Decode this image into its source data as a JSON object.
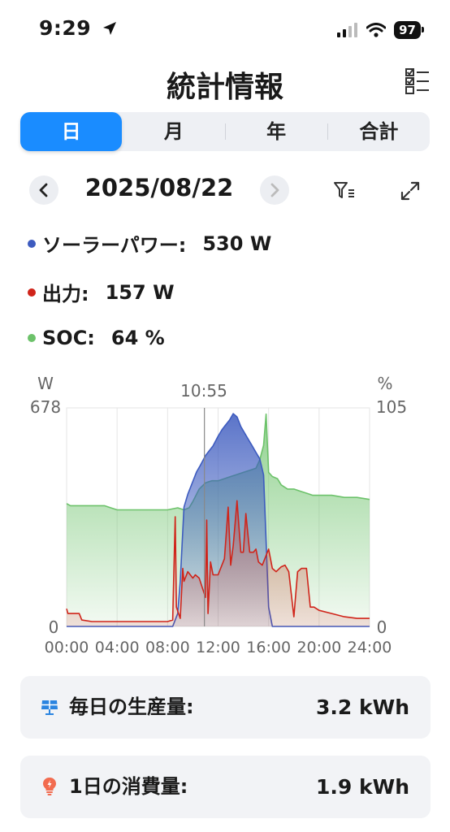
{
  "status_bar": {
    "time": "9:29",
    "battery": "97"
  },
  "header": {
    "title": "統計情報"
  },
  "tabs": [
    {
      "label": "日",
      "active": true
    },
    {
      "label": "月",
      "active": false
    },
    {
      "label": "年",
      "active": false
    },
    {
      "label": "合計",
      "active": false
    }
  ],
  "date_nav": {
    "date": "2025/08/22"
  },
  "legend": {
    "solar": {
      "label": "ソーラーパワー:",
      "value": "530 W",
      "color": "#3d5bbf"
    },
    "output": {
      "label": "出力:",
      "value": "157 W",
      "color": "#d0241a"
    },
    "soc": {
      "label": "SOC:",
      "value": "64 %",
      "color": "#6cc26a"
    }
  },
  "chart_data": {
    "type": "area",
    "cursor_time": "10:55",
    "left_axis": {
      "unit": "W",
      "max_label": "678",
      "min_label": "0",
      "ylim": [
        0,
        678
      ]
    },
    "right_axis": {
      "unit": "%",
      "max_label": "105",
      "min_label": "0",
      "ylim": [
        0,
        105
      ]
    },
    "x_ticks": [
      "00:00",
      "04:00",
      "08:00",
      "12:00",
      "16:00",
      "20:00",
      "24:00"
    ],
    "xlim": [
      0,
      24
    ],
    "series": [
      {
        "name": "SOC",
        "axis": "right",
        "color": "#6cc26a",
        "x": [
          0,
          0.3,
          1,
          2,
          3,
          3.5,
          4,
          5,
          6,
          7,
          8,
          8.8,
          9.3,
          9.7,
          10,
          10.5,
          11,
          11.5,
          12,
          12.5,
          13,
          13.5,
          14,
          14.5,
          15,
          15.3,
          15.6,
          15.8,
          16,
          16.3,
          16.7,
          17,
          17.5,
          18,
          18.5,
          19,
          19.5,
          20,
          21,
          22,
          23,
          24
        ],
        "y": [
          59,
          58,
          58,
          58,
          58,
          57,
          56,
          56,
          56,
          56,
          56,
          57,
          56,
          57,
          60,
          66,
          69,
          70,
          70,
          71,
          72,
          73,
          74,
          75,
          76,
          80,
          87,
          102,
          74,
          72,
          71,
          68,
          66,
          66,
          65,
          64,
          63,
          63,
          63,
          62,
          62,
          61
        ]
      },
      {
        "name": "Solar",
        "axis": "left",
        "color": "#3d5bbf",
        "x": [
          0,
          8.4,
          8.8,
          9,
          9.3,
          9.6,
          10,
          10.3,
          10.6,
          11,
          11.3,
          11.6,
          12,
          12.3,
          12.6,
          12.9,
          13.2,
          13.5,
          13.8,
          14.1,
          14.4,
          14.7,
          15,
          15.3,
          15.6,
          16,
          16.3,
          24
        ],
        "y": [
          0,
          0,
          40,
          140,
          370,
          410,
          450,
          480,
          500,
          530,
          545,
          560,
          590,
          610,
          625,
          640,
          660,
          650,
          620,
          600,
          580,
          560,
          540,
          520,
          470,
          60,
          0,
          0
        ]
      },
      {
        "name": "Output",
        "axis": "left",
        "color": "#d0241a",
        "x": [
          0,
          0.1,
          1,
          1.2,
          2,
          3,
          4,
          5,
          6,
          7,
          8,
          8.4,
          8.6,
          8.7,
          9,
          9.2,
          9.3,
          9.6,
          10,
          10.2,
          10.5,
          11,
          11.1,
          11.2,
          11.4,
          11.6,
          12,
          12.2,
          12.5,
          12.8,
          13,
          13.2,
          13.5,
          13.8,
          14,
          14.2,
          14.5,
          14.8,
          15,
          15.2,
          15.5,
          16,
          16.3,
          16.6,
          17,
          17.3,
          17.6,
          18,
          18.3,
          18.6,
          19,
          19.3,
          19.6,
          20,
          21,
          22,
          23,
          24
        ],
        "y": [
          55,
          40,
          40,
          20,
          15,
          15,
          15,
          15,
          15,
          15,
          15,
          20,
          340,
          60,
          25,
          180,
          140,
          170,
          150,
          160,
          150,
          90,
          330,
          40,
          200,
          160,
          160,
          180,
          210,
          370,
          190,
          250,
          390,
          230,
          230,
          350,
          230,
          230,
          240,
          200,
          190,
          240,
          180,
          170,
          185,
          190,
          170,
          30,
          170,
          180,
          180,
          60,
          60,
          50,
          40,
          30,
          25,
          25
        ]
      }
    ]
  },
  "summary": [
    {
      "icon": "solar-panel-icon",
      "label": "毎日の生産量:",
      "value": "3.2 kWh"
    },
    {
      "icon": "lightbulb-icon",
      "label": "1日の消費量:",
      "value": "1.9 kWh"
    }
  ]
}
